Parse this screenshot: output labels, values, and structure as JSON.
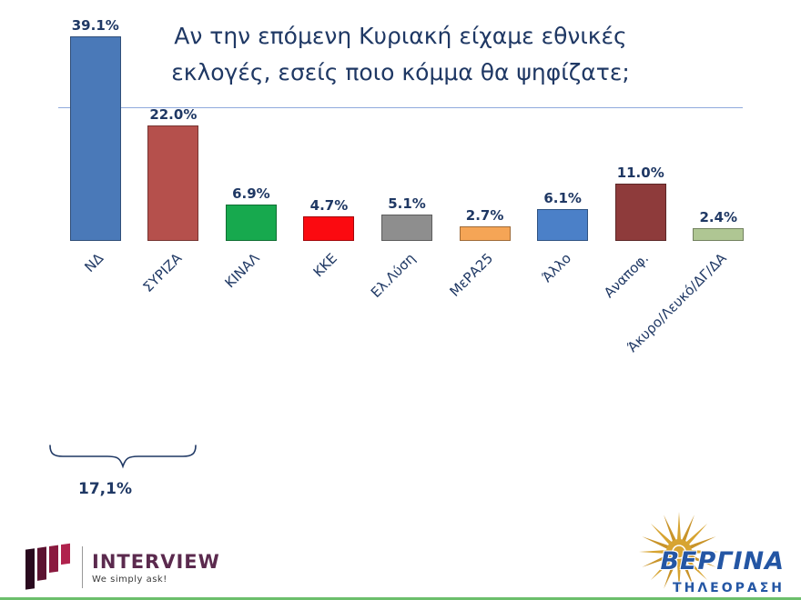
{
  "title": {
    "line1": "Αν την επόμενη Κυριακή είχαμε εθνικές",
    "line2": "εκλογές, εσείς ποιο κόμμα θα ψηφίζατε;"
  },
  "chart_data": {
    "type": "bar",
    "categories": [
      "ΝΔ",
      "ΣΥΡΙΖΑ",
      "ΚΙΝΑΛ",
      "ΚΚΕ",
      "Ελ.Λύση",
      "ΜεΡΑ25",
      "Άλλο",
      "Αναποφ.",
      "Άκυρο/Λευκό/ΔΓ/ΔΑ"
    ],
    "values": [
      39.1,
      22.0,
      6.9,
      4.7,
      5.1,
      2.7,
      6.1,
      11.0,
      2.4
    ],
    "value_labels": [
      "39.1%",
      "22.0%",
      "6.9%",
      "4.7%",
      "5.1%",
      "2.7%",
      "6.1%",
      "11.0%",
      "2.4%"
    ],
    "bar_colors": [
      "#4A79B8",
      "#B5504C",
      "#17A94E",
      "#FB0A10",
      "#8E8E8E",
      "#F5A556",
      "#4B80C8",
      "#8E3B3B",
      "#AFC693"
    ],
    "title": "Αν την επόμενη Κυριακή είχαμε εθνικές εκλογές, εσείς ποιο κόμμα θα ψηφίζατε;",
    "xlabel": "",
    "ylabel": "",
    "ylim": [
      0,
      45
    ],
    "grid": false,
    "legend": "none",
    "annotation": {
      "text": "17,1%",
      "spans_categories": [
        "ΝΔ",
        "ΣΥΡΙΖΑ"
      ]
    }
  },
  "annotation": {
    "diff_label": "17,1%"
  },
  "logos": {
    "interview": {
      "icon": "interview-bars-icon",
      "name": "INTERVIEW",
      "tagline": "We simply ask!",
      "brand_color": "#5B2A4E"
    },
    "vergina": {
      "icon": "vergina-sun-icon",
      "line1": "ΒΕΡΓΙΝΑ",
      "line2": "ΤΗΛΕΟΡΑΣΗ",
      "brand_color": "#2456A4",
      "sun_color": "#D7A431"
    }
  },
  "colors": {
    "text": "#1F3864",
    "title_rule": "#8FAADC",
    "bottom_line": "#6CBF6C"
  }
}
